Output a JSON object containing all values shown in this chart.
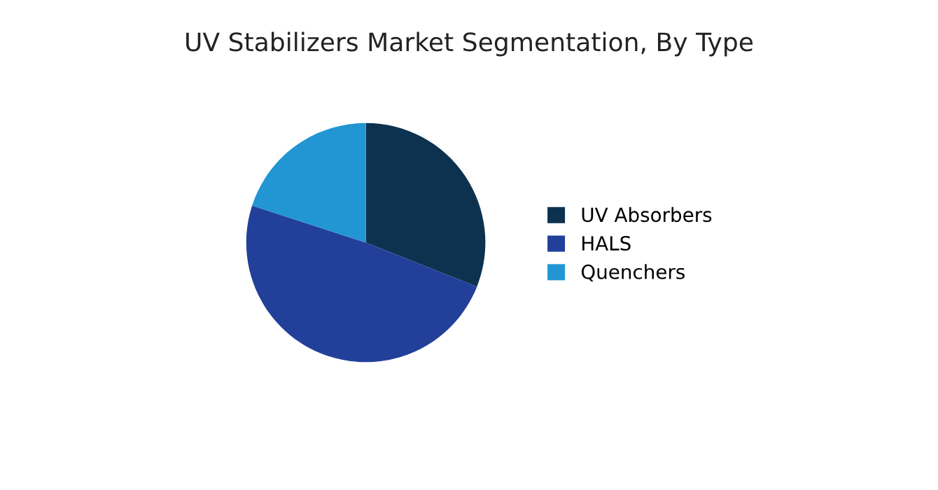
{
  "chart_data": {
    "type": "pie",
    "title": "UV Stabilizers Market Segmentation, By Type",
    "categories": [
      "UV Absorbers",
      "HALS",
      "Quenchers"
    ],
    "values": [
      31,
      49,
      20
    ],
    "colors": [
      "#0d3250",
      "#22409a",
      "#2196d3"
    ],
    "legend": "right"
  }
}
